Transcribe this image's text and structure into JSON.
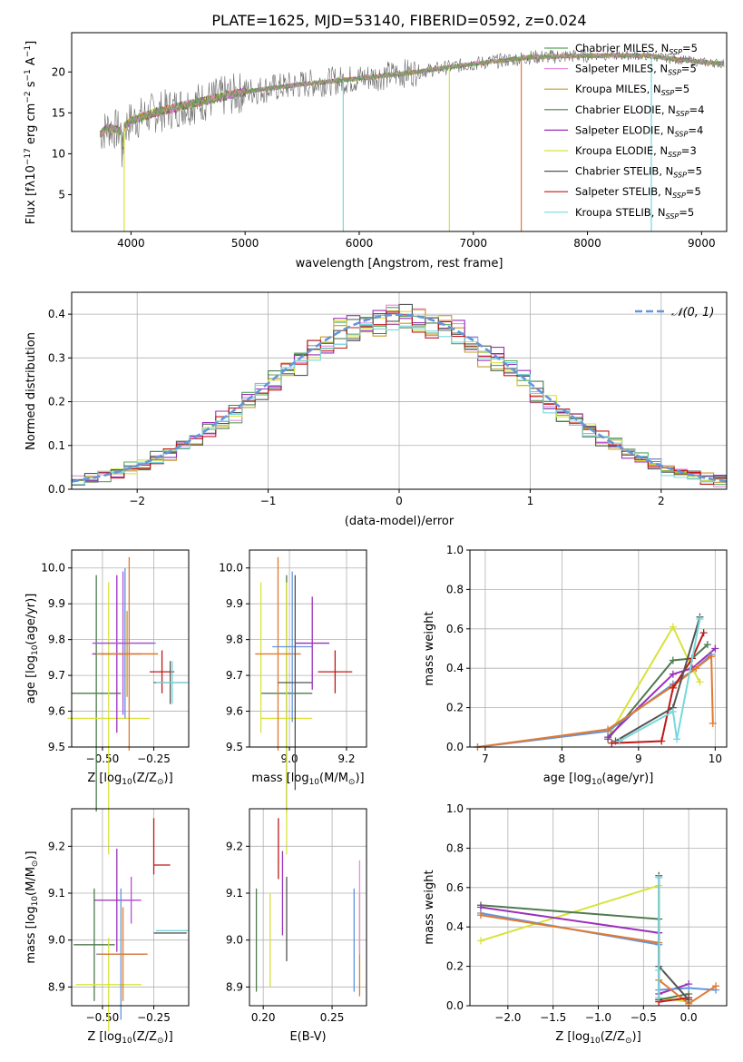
{
  "chart_data": [
    {
      "id": "spectrum",
      "type": "line",
      "title": "PLATE=1625, MJD=53140, FIBERID=0592, z=0.024",
      "xlabel": "wavelength [Angstrom, rest frame]",
      "ylabel_parts": [
        "Flux [f",
        "λ",
        "10",
        "−17",
        " erg cm",
        "−2",
        " s",
        "−1",
        " A",
        "−1",
        "]"
      ],
      "xlim": [
        3480,
        9220
      ],
      "ylim": [
        0.5,
        24.8
      ],
      "xticks": [
        4000,
        5000,
        6000,
        7000,
        8000,
        9000
      ],
      "yticks": [
        5,
        10,
        15,
        20
      ],
      "legend_position": "upper-right",
      "series": [
        {
          "name": "Chabrier MILES",
          "nssp": "5",
          "color": "#5aa35a"
        },
        {
          "name": "Salpeter MILES",
          "nssp": "5",
          "color": "#e58ee0"
        },
        {
          "name": "Kroupa MILES",
          "nssp": "5",
          "color": "#c49a32"
        },
        {
          "name": "Chabrier ELODIE",
          "nssp": "4",
          "color": "#4f7a4f"
        },
        {
          "name": "Salpeter ELODIE",
          "nssp": "4",
          "color": "#9a2fba"
        },
        {
          "name": "Kroupa ELODIE",
          "nssp": "3",
          "color": "#d8e23a"
        },
        {
          "name": "Chabrier STELIB",
          "nssp": "5",
          "color": "#555555"
        },
        {
          "name": "Salpeter STELIB",
          "nssp": "5",
          "color": "#c01818"
        },
        {
          "name": "Kroupa STELIB",
          "nssp": "5",
          "color": "#77d8dc"
        }
      ],
      "continuum_points": [
        [
          3730,
          12.5
        ],
        [
          3800,
          13.2
        ],
        [
          3900,
          12.8
        ],
        [
          4000,
          14.0
        ],
        [
          4200,
          15.0
        ],
        [
          4500,
          16.0
        ],
        [
          5000,
          17.6
        ],
        [
          5500,
          18.5
        ],
        [
          6000,
          19.2
        ],
        [
          6500,
          20.0
        ],
        [
          7000,
          21.0
        ],
        [
          7500,
          21.8
        ],
        [
          8000,
          22.0
        ],
        [
          8500,
          22.0
        ],
        [
          9000,
          21.2
        ],
        [
          9200,
          21.0
        ]
      ]
    },
    {
      "id": "residuals",
      "type": "step",
      "xlabel": "(data-model)/error",
      "ylabel": "Normed distribution",
      "xlim": [
        -2.5,
        2.5
      ],
      "ylim": [
        0,
        0.45
      ],
      "xticks": [
        -2,
        -1,
        0,
        1,
        2
      ],
      "yticks": [
        0.0,
        0.1,
        0.2,
        0.3,
        0.4
      ],
      "gaussian_label": "𝒩(0, 1)",
      "gaussian_color": "#6495dc",
      "bin_width": 0.1
    },
    {
      "id": "age-vs-Z",
      "type": "errorbar",
      "xlabel_parts": [
        "Z [log",
        "10",
        "(Z/Z",
        "⊙",
        ")]"
      ],
      "ylabel_parts": [
        "age  [log",
        "10",
        "(age/yr)]"
      ],
      "xlim": [
        -0.65,
        -0.08
      ],
      "ylim": [
        9.5,
        10.05
      ],
      "xticks": [
        -0.5,
        -0.25
      ],
      "yticks": [
        9.5,
        9.6,
        9.7,
        9.8,
        9.9,
        10.0
      ],
      "points": [
        {
          "x": -0.53,
          "xerr": 0.12,
          "y": 9.65,
          "yerr": 0.33,
          "color": "#4f7a4f"
        },
        {
          "x": -0.47,
          "xerr": 0.2,
          "y": 9.58,
          "yerr": 0.38,
          "color": "#d8e23a"
        },
        {
          "x": -0.43,
          "xerr": 0.12,
          "y": 9.76,
          "yerr": 0.22,
          "color": "#9a2fba"
        },
        {
          "x": -0.39,
          "xerr": 0.15,
          "y": 9.79,
          "yerr": 0.21,
          "color": "#6495dc"
        },
        {
          "x": -0.38,
          "xerr": 0.15,
          "y": 9.76,
          "yerr": 0.12,
          "color": "#c49a32"
        },
        {
          "x": -0.4,
          "xerr": 0.15,
          "y": 9.79,
          "yerr": 0.2,
          "color": "#b54fd8"
        },
        {
          "x": -0.37,
          "xerr": 0.14,
          "y": 9.76,
          "yerr": 0.27,
          "color": "#e07a30"
        },
        {
          "x": -0.21,
          "xerr": 0.06,
          "y": 9.71,
          "yerr": 0.06,
          "color": "#c01818"
        },
        {
          "x": -0.17,
          "xerr": 0.08,
          "y": 9.68,
          "yerr": 0.06,
          "color": "#555555"
        },
        {
          "x": -0.16,
          "xerr": 0.08,
          "y": 9.68,
          "yerr": 0.06,
          "color": "#77d8dc"
        }
      ]
    },
    {
      "id": "age-vs-mass",
      "type": "errorbar",
      "xlabel_parts": [
        "mass [log",
        "10",
        "(M/M",
        "⊙",
        ")]"
      ],
      "xlim": [
        8.86,
        9.27
      ],
      "ylim": [
        9.5,
        10.05
      ],
      "xticks": [
        9.0,
        9.2
      ],
      "yticks": [
        9.5,
        9.6,
        9.7,
        9.8,
        9.9,
        10.0
      ],
      "points": [
        {
          "x": 8.99,
          "xerr": 0.09,
          "y": 9.65,
          "yerr": 0.33,
          "color": "#4f7a4f"
        },
        {
          "x": 8.9,
          "xerr": 0.0,
          "y": 9.75,
          "yerr": 0.21,
          "color": "#d8e23a"
        },
        {
          "x": 8.99,
          "xerr": 0.09,
          "y": 9.58,
          "yerr": 0.38,
          "color": "#d8e23a"
        },
        {
          "x": 8.96,
          "xerr": 0.08,
          "y": 9.76,
          "yerr": 0.27,
          "color": "#e07a30"
        },
        {
          "x": 9.01,
          "xerr": 0.07,
          "y": 9.78,
          "yerr": 0.21,
          "color": "#6495dc"
        },
        {
          "x": 9.02,
          "xerr": 0.06,
          "y": 9.68,
          "yerr": 0.3,
          "color": "#555555"
        },
        {
          "x": 9.08,
          "xerr": 0.06,
          "y": 9.79,
          "yerr": 0.13,
          "color": "#9a2fba"
        },
        {
          "x": 9.16,
          "xerr": 0.06,
          "y": 9.71,
          "yerr": 0.06,
          "color": "#c01818"
        }
      ]
    },
    {
      "id": "massweight-vs-age",
      "type": "line",
      "xlabel_parts": [
        "age  [log",
        "10",
        "(age/yr)]"
      ],
      "ylabel": "mass weight",
      "xlim": [
        6.8,
        10.15
      ],
      "ylim": [
        0.0,
        1.0
      ],
      "xticks": [
        7,
        8,
        9,
        10
      ],
      "yticks": [
        0.0,
        0.2,
        0.4,
        0.6,
        0.8,
        1.0
      ],
      "series": [
        {
          "color": "#d8e23a",
          "x": [
            8.6,
            9.45,
            9.7,
            9.8
          ],
          "y": [
            0.05,
            0.61,
            0.4,
            0.33
          ]
        },
        {
          "color": "#4f7a4f",
          "x": [
            8.6,
            9.45,
            9.7,
            9.9
          ],
          "y": [
            0.04,
            0.44,
            0.45,
            0.52
          ]
        },
        {
          "color": "#9a2fba",
          "x": [
            8.6,
            9.45,
            9.7,
            10.0
          ],
          "y": [
            0.05,
            0.37,
            0.4,
            0.5
          ]
        },
        {
          "color": "#6495dc",
          "x": [
            6.9,
            8.6,
            9.45,
            9.75,
            9.95
          ],
          "y": [
            0.0,
            0.08,
            0.32,
            0.4,
            0.47
          ]
        },
        {
          "color": "#e07a30",
          "x": [
            6.9,
            8.6,
            9.45,
            9.75,
            9.95,
            9.97
          ],
          "y": [
            0.0,
            0.09,
            0.31,
            0.4,
            0.46,
            0.12
          ]
        },
        {
          "color": "#c01818",
          "x": [
            8.65,
            9.3,
            9.45,
            9.7,
            9.85
          ],
          "y": [
            0.02,
            0.03,
            0.3,
            0.45,
            0.58
          ]
        },
        {
          "color": "#555555",
          "x": [
            8.7,
            9.45,
            9.8
          ],
          "y": [
            0.03,
            0.2,
            0.66
          ]
        },
        {
          "color": "#77d8dc",
          "x": [
            8.75,
            9.45,
            9.5,
            9.8
          ],
          "y": [
            0.03,
            0.18,
            0.04,
            0.65
          ]
        }
      ]
    },
    {
      "id": "mass-vs-Z",
      "type": "errorbar",
      "xlabel_parts": [
        "Z [log",
        "10",
        "(Z/Z",
        "⊙",
        ")]"
      ],
      "ylabel_parts": [
        "mass [log",
        "10",
        "(M/M",
        "⊙",
        ")]"
      ],
      "xlim": [
        -0.65,
        -0.08
      ],
      "ylim": [
        8.86,
        9.28
      ],
      "xticks": [
        -0.5,
        -0.25
      ],
      "yticks": [
        8.9,
        9.0,
        9.1,
        9.2
      ],
      "points": [
        {
          "x": -0.54,
          "xerr": 0.1,
          "y": 8.99,
          "yerr": 0.12,
          "color": "#4f7a4f"
        },
        {
          "x": -0.47,
          "xerr": 0.16,
          "y": 8.905,
          "yerr": 0.1,
          "color": "#d8e23a"
        },
        {
          "x": -0.43,
          "xerr": 0.11,
          "y": 9.085,
          "yerr": 0.11,
          "color": "#9a2fba"
        },
        {
          "x": -0.41,
          "xerr": 0.12,
          "y": 8.97,
          "yerr": 0.14,
          "color": "#6495dc"
        },
        {
          "x": -0.4,
          "xerr": 0.12,
          "y": 8.97,
          "yerr": 0.1,
          "color": "#e07a30"
        },
        {
          "x": -0.36,
          "xerr": 0.05,
          "y": 9.085,
          "yerr": 0.05,
          "color": "#b54fd8"
        },
        {
          "x": -0.25,
          "xerr": 0.0,
          "y": 9.2,
          "yerr": 0.06,
          "color": "#c01818"
        },
        {
          "x": -0.21,
          "xerr": 0.04,
          "y": 9.16,
          "yerr": 0.0,
          "color": "#c01818"
        },
        {
          "x": -0.17,
          "xerr": 0.08,
          "y": 9.015,
          "yerr": 0.0,
          "color": "#555555"
        },
        {
          "x": -0.16,
          "xerr": 0.08,
          "y": 9.02,
          "yerr": 0.0,
          "color": "#77d8dc"
        }
      ]
    },
    {
      "id": "mass-vs-ebv",
      "type": "errorbar",
      "xlabel": "E(B-V)",
      "xlim": [
        0.19,
        0.275
      ],
      "ylim": [
        8.86,
        9.28
      ],
      "xticks": [
        0.2,
        0.25
      ],
      "yticks": [
        8.9,
        9.0,
        9.1,
        9.2
      ],
      "points": [
        {
          "x": 0.195,
          "y": 9.0,
          "yerr": 0.11,
          "color": "#4f7a4f"
        },
        {
          "x": 0.205,
          "y": 9.0,
          "yerr": 0.1,
          "color": "#d8e23a"
        },
        {
          "x": 0.211,
          "y": 9.195,
          "yerr": 0.065,
          "color": "#c01818"
        },
        {
          "x": 0.214,
          "y": 9.1,
          "yerr": 0.09,
          "color": "#9a2fba"
        },
        {
          "x": 0.217,
          "y": 9.045,
          "yerr": 0.09,
          "color": "#555555"
        },
        {
          "x": 0.266,
          "y": 9.0,
          "yerr": 0.11,
          "color": "#6495dc"
        },
        {
          "x": 0.27,
          "y": 8.99,
          "yerr": 0.11,
          "color": "#e07a30"
        },
        {
          "x": 0.27,
          "y": 9.07,
          "yerr": 0.1,
          "color": "#e58ee0"
        }
      ]
    },
    {
      "id": "massweight-vs-Z",
      "type": "line",
      "xlabel_parts": [
        "Z [log",
        "10",
        "(Z/Z",
        "⊙",
        ")]"
      ],
      "ylabel": "mass weight",
      "xlim": [
        -2.42,
        0.42
      ],
      "ylim": [
        0.0,
        1.0
      ],
      "xticks": [
        -2.0,
        -1.5,
        -1.0,
        -0.5,
        0.0
      ],
      "yticks": [
        0.0,
        0.2,
        0.4,
        0.6,
        0.8,
        1.0
      ],
      "series": [
        {
          "color": "#d8e23a",
          "x": [
            -2.3,
            -0.33,
            -0.33,
            0.0
          ],
          "y": [
            0.33,
            0.61,
            0.04,
            0.02
          ]
        },
        {
          "color": "#4f7a4f",
          "x": [
            -2.3,
            -0.33,
            -0.33,
            0.0
          ],
          "y": [
            0.51,
            0.44,
            0.03,
            0.06
          ]
        },
        {
          "color": "#9a2fba",
          "x": [
            -2.3,
            -0.33,
            -0.33,
            0.0
          ],
          "y": [
            0.5,
            0.37,
            0.06,
            0.11
          ]
        },
        {
          "color": "#6495dc",
          "x": [
            -2.3,
            -0.33,
            -0.33,
            0.0,
            0.3
          ],
          "y": [
            0.47,
            0.31,
            0.08,
            0.09,
            0.08
          ]
        },
        {
          "color": "#e07a30",
          "x": [
            -2.3,
            -0.33,
            -0.33,
            0.0,
            0.3
          ],
          "y": [
            0.46,
            0.32,
            0.13,
            0.01,
            0.1
          ]
        },
        {
          "color": "#c01818",
          "x": [
            -0.33,
            -0.33,
            0.0
          ],
          "y": [
            0.03,
            0.02,
            0.04
          ]
        },
        {
          "color": "#555555",
          "x": [
            -0.33,
            -0.33,
            0.0
          ],
          "y": [
            0.66,
            0.2,
            0.03
          ]
        },
        {
          "color": "#77d8dc",
          "x": [
            -0.33,
            -0.33,
            -0.33
          ],
          "y": [
            0.65,
            0.18,
            0.04
          ]
        }
      ]
    }
  ]
}
